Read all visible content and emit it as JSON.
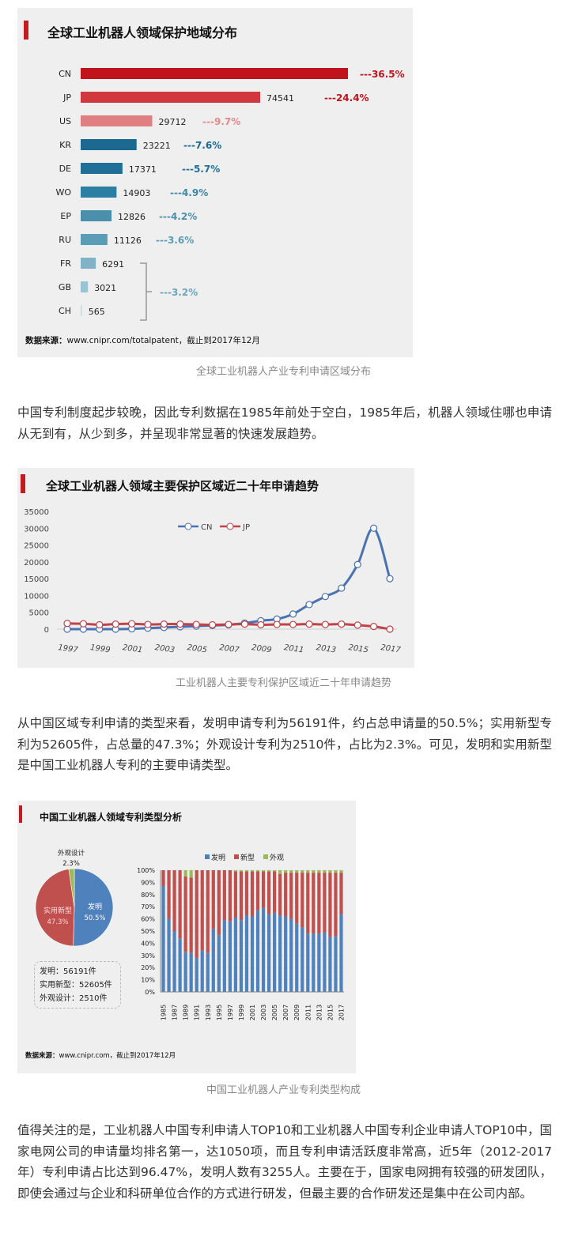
{
  "figure1": {
    "title": "全球工业机器人领域保护地域分布",
    "source_label": "数据来源：",
    "source_text": "www.cnipr.com/totalpatent，截止到2017年12月",
    "caption": "全球工业机器人产业专利申请区域分布"
  },
  "paragraph1": "中国专利制度起步较晚，因此专利数据在1985年前处于空白，1985年后，机器人领域住哪也申请从无到有，从少到多，并呈现非常显著的快速发展趋势。",
  "figure2": {
    "title": "全球工业机器人领域主要保护区域近二十年申请趋势",
    "caption": "工业机器人主要专利保护区域近二十年申请趋势"
  },
  "paragraph2": "从中国区域专利申请的类型来看，发明申请专利为56191件，约占总申请量的50.5%；实用新型专利为52605件，占总量的47.3%；外观设计专利为2510件，占比为2.3%。可见，发明和实用新型是中国工业机器人专利的主要申请类型。",
  "figure3": {
    "title": "中国工业机器人领域专利类型分析",
    "info_box": [
      "发明：56191件",
      "实用新型：52605件",
      "外观设计：2510件"
    ],
    "source_label": "数据来源：",
    "source_text": "www.cnipr.com，截止到2017年12月",
    "caption": "中国工业机器人产业专利类型构成"
  },
  "paragraph3": "值得关注的是，工业机器人中国专利申请人TOP10和工业机器人中国专利企业申请人TOP10中，国家电网公司的申请量均排名第一，达1050项，而且专利申请活跃度非常高，近5年（2012-2017年）专利申请占比达到96.47%，发明人数有3255人。主要在于，国家电网拥有较强的研发团队，即使会通过与企业和科研单位合作的方式进行研发，但最主要的合作研发还是集中在公司内部。",
  "chart_data": [
    {
      "type": "bar",
      "orientation": "horizontal",
      "title": "全球工业机器人领域保护地域分布",
      "categories": [
        "CN",
        "JP",
        "US",
        "KR",
        "DE",
        "WO",
        "EP",
        "RU",
        "FR",
        "GB",
        "CH"
      ],
      "values": [
        111000,
        74541,
        29712,
        23221,
        17371,
        14903,
        12826,
        11126,
        6291,
        3021,
        565
      ],
      "value_labels": [
        "",
        "74541",
        "29712",
        "23221",
        "17371",
        "14903",
        "12826",
        "11126",
        "6291",
        "3021",
        "565"
      ],
      "percent_labels": [
        "---36.5%",
        "---24.4%",
        "---9.7%",
        "---7.6%",
        "---5.7%",
        "---4.9%",
        "---4.2%",
        "---3.6%",
        "",
        "",
        ""
      ],
      "group_label": "---3.2%",
      "colors": [
        "#c1131c",
        "#d0383d",
        "#e07f82",
        "#1b6890",
        "#1f6f98",
        "#2a7fa3",
        "#4a90ad",
        "#5b9db7",
        "#80b3c7",
        "#9cc3d3",
        "#c8dde6"
      ],
      "percent_colors": [
        "#c1131c",
        "#c1131c",
        "#e08a8c",
        "#1b6890",
        "#1f6f98",
        "#3b88a8",
        "#4a90ad",
        "#5b9db7",
        "",
        "",
        ""
      ],
      "group_color": "#6aa6bd"
    },
    {
      "type": "line",
      "title": "全球工业机器人领域主要保护区域近二十年申请趋势",
      "x": [
        1997,
        1998,
        1999,
        2000,
        2001,
        2002,
        2003,
        2004,
        2005,
        2006,
        2007,
        2008,
        2009,
        2010,
        2011,
        2012,
        2013,
        2014,
        2015,
        2016,
        2017
      ],
      "x_tick_labels": [
        "1997",
        "1999",
        "2001",
        "2003",
        "2005",
        "2007",
        "2009",
        "2011",
        "2013",
        "2015",
        "2017"
      ],
      "y_tick_labels": [
        "0",
        "5000",
        "10000",
        "15000",
        "20000",
        "25000",
        "30000",
        "35000"
      ],
      "ylim": [
        0,
        35000
      ],
      "legend_position": "top-center",
      "series": [
        {
          "name": "CN",
          "color": "#4a72b0",
          "values": [
            0,
            0,
            0,
            0,
            100,
            300,
            500,
            700,
            900,
            1100,
            1300,
            1800,
            2500,
            3000,
            4500,
            7300,
            9700,
            12200,
            19200,
            30000,
            15000
          ]
        },
        {
          "name": "JP",
          "color": "#c0424a",
          "values": [
            1700,
            1600,
            1300,
            1500,
            1600,
            1400,
            1500,
            1500,
            1400,
            1300,
            1400,
            1500,
            1300,
            1400,
            1400,
            1500,
            1400,
            1500,
            1200,
            800,
            0
          ]
        }
      ]
    },
    {
      "type": "pie",
      "labels": [
        "发明",
        "实用新型",
        "外观设计"
      ],
      "values": [
        50.5,
        47.3,
        2.3
      ],
      "value_labels": [
        "50.5%",
        "47.3%",
        "2.3%"
      ],
      "colors": [
        "#4f81bd",
        "#c0504d",
        "#9bbb59"
      ]
    },
    {
      "type": "bar",
      "stacked": true,
      "categories": [
        "1985",
        "1986",
        "1987",
        "1988",
        "1989",
        "1990",
        "1991",
        "1992",
        "1993",
        "1994",
        "1995",
        "1996",
        "1997",
        "1998",
        "1999",
        "2000",
        "2001",
        "2002",
        "2003",
        "2004",
        "2005",
        "2006",
        "2007",
        "2008",
        "2009",
        "2010",
        "2011",
        "2012",
        "2013",
        "2014",
        "2015",
        "2016",
        "2017"
      ],
      "x_tick_labels": [
        "1985",
        "1987",
        "1989",
        "1991",
        "1993",
        "1995",
        "1997",
        "1999",
        "2001",
        "2003",
        "2005",
        "2007",
        "2009",
        "2011",
        "2013",
        "2015",
        "2017"
      ],
      "y_tick_labels": [
        "0%",
        "10%",
        "20%",
        "30%",
        "40%",
        "50%",
        "60%",
        "70%",
        "80%",
        "90%",
        "100%"
      ],
      "ylim": [
        0,
        100
      ],
      "legend_position": "top",
      "series": [
        {
          "name": "发明",
          "color": "#4f81bd",
          "values": [
            87,
            60,
            50,
            44,
            33,
            32,
            28,
            34,
            32,
            52,
            47,
            59,
            58,
            61,
            59,
            63,
            62,
            67,
            69,
            64,
            65,
            63,
            62,
            60,
            56,
            53,
            48,
            48,
            48,
            49,
            45,
            46,
            64
          ]
        },
        {
          "name": "新型",
          "color": "#c0504d",
          "values": [
            13,
            40,
            50,
            56,
            62,
            62,
            72,
            66,
            68,
            48,
            53,
            41,
            42,
            38,
            40,
            36,
            37,
            32,
            30,
            35,
            34,
            34,
            36,
            38,
            42,
            45,
            50,
            50,
            50,
            49,
            53,
            52,
            34
          ]
        },
        {
          "name": "外观",
          "color": "#9bbb59",
          "values": [
            0,
            0,
            0,
            0,
            5,
            6,
            0,
            0,
            0,
            0,
            0,
            0,
            0,
            1,
            1,
            1,
            1,
            1,
            1,
            1,
            1,
            3,
            2,
            2,
            2,
            2,
            2,
            2,
            2,
            2,
            2,
            2,
            2
          ]
        }
      ]
    }
  ]
}
